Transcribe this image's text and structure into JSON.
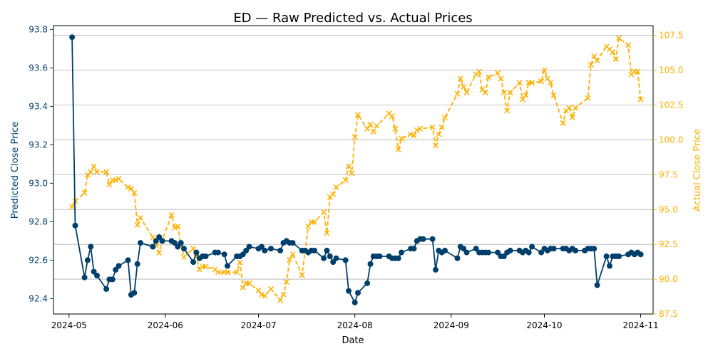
{
  "chart_data": {
    "type": "line",
    "title": "ED — Raw Predicted vs. Actual Prices",
    "xlabel": "Date",
    "ylabel_left": "Predicted Close Price",
    "ylabel_right": "Actual Close Price",
    "x_ticks": [
      "2024-05",
      "2024-06",
      "2024-07",
      "2024-08",
      "2024-09",
      "2024-10",
      "2024-11"
    ],
    "y_left_ticks": [
      "92.4",
      "92.6",
      "92.8",
      "93.0",
      "93.2",
      "93.4",
      "93.6",
      "93.8"
    ],
    "y_right_ticks": [
      "87.5",
      "90.0",
      "92.5",
      "95.0",
      "97.5",
      "100.0",
      "102.5",
      "105.0",
      "107.5"
    ],
    "ylim_left": [
      92.32,
      93.82
    ],
    "ylim_right": [
      87.5,
      108.2
    ],
    "xlim": [
      "2024-04-26",
      "2024-11-05"
    ],
    "grid": "horizontal lines on right axis",
    "colors": {
      "predicted": "#003f6b",
      "actual": "#ffb000"
    },
    "series": [
      {
        "axis": "left",
        "style": "solid line with circle markers",
        "points": [
          [
            "2024-05-02",
            93.76
          ],
          [
            "2024-05-03",
            92.78
          ],
          [
            "2024-05-06",
            92.51
          ],
          [
            "2024-05-07",
            92.6
          ],
          [
            "2024-05-08",
            92.67
          ],
          [
            "2024-05-09",
            92.54
          ],
          [
            "2024-05-10",
            92.52
          ],
          [
            "2024-05-13",
            92.45
          ],
          [
            "2024-05-14",
            92.5
          ],
          [
            "2024-05-15",
            92.5
          ],
          [
            "2024-05-16",
            92.55
          ],
          [
            "2024-05-17",
            92.57
          ],
          [
            "2024-05-20",
            92.6
          ],
          [
            "2024-05-21",
            92.42
          ],
          [
            "2024-05-22",
            92.43
          ],
          [
            "2024-05-23",
            92.58
          ],
          [
            "2024-05-24",
            92.69
          ],
          [
            "2024-05-28",
            92.67
          ],
          [
            "2024-05-29",
            92.7
          ],
          [
            "2024-05-30",
            92.72
          ],
          [
            "2024-05-31",
            92.7
          ],
          [
            "2024-06-03",
            92.7
          ],
          [
            "2024-06-04",
            92.69
          ],
          [
            "2024-06-05",
            92.67
          ],
          [
            "2024-06-06",
            92.69
          ],
          [
            "2024-06-07",
            92.66
          ],
          [
            "2024-06-10",
            92.59
          ],
          [
            "2024-06-11",
            92.64
          ],
          [
            "2024-06-12",
            92.61
          ],
          [
            "2024-06-13",
            92.62
          ],
          [
            "2024-06-14",
            92.62
          ],
          [
            "2024-06-17",
            92.64
          ],
          [
            "2024-06-18",
            92.64
          ],
          [
            "2024-06-20",
            92.63
          ],
          [
            "2024-06-21",
            92.57
          ],
          [
            "2024-06-24",
            92.62
          ],
          [
            "2024-06-25",
            92.62
          ],
          [
            "2024-06-26",
            92.63
          ],
          [
            "2024-06-27",
            92.65
          ],
          [
            "2024-06-28",
            92.67
          ],
          [
            "2024-07-01",
            92.66
          ],
          [
            "2024-07-02",
            92.67
          ],
          [
            "2024-07-03",
            92.65
          ],
          [
            "2024-07-05",
            92.66
          ],
          [
            "2024-07-08",
            92.65
          ],
          [
            "2024-07-09",
            92.69
          ],
          [
            "2024-07-10",
            92.7
          ],
          [
            "2024-07-11",
            92.69
          ],
          [
            "2024-07-12",
            92.69
          ],
          [
            "2024-07-15",
            92.65
          ],
          [
            "2024-07-16",
            92.65
          ],
          [
            "2024-07-17",
            92.64
          ],
          [
            "2024-07-18",
            92.65
          ],
          [
            "2024-07-19",
            92.65
          ],
          [
            "2024-07-22",
            92.61
          ],
          [
            "2024-07-23",
            92.65
          ],
          [
            "2024-07-24",
            92.62
          ],
          [
            "2024-07-25",
            92.59
          ],
          [
            "2024-07-26",
            92.61
          ],
          [
            "2024-07-29",
            92.6
          ],
          [
            "2024-07-30",
            92.44
          ],
          [
            "2024-08-01",
            92.38
          ],
          [
            "2024-08-02",
            92.43
          ],
          [
            "2024-08-05",
            92.48
          ],
          [
            "2024-08-06",
            92.58
          ],
          [
            "2024-08-07",
            92.62
          ],
          [
            "2024-08-08",
            92.62
          ],
          [
            "2024-08-09",
            92.62
          ],
          [
            "2024-08-12",
            92.62
          ],
          [
            "2024-08-13",
            92.61
          ],
          [
            "2024-08-14",
            92.61
          ],
          [
            "2024-08-15",
            92.61
          ],
          [
            "2024-08-16",
            92.64
          ],
          [
            "2024-08-19",
            92.66
          ],
          [
            "2024-08-20",
            92.66
          ],
          [
            "2024-08-21",
            92.7
          ],
          [
            "2024-08-22",
            92.71
          ],
          [
            "2024-08-23",
            92.71
          ],
          [
            "2024-08-26",
            92.71
          ],
          [
            "2024-08-27",
            92.55
          ],
          [
            "2024-08-28",
            92.65
          ],
          [
            "2024-08-29",
            92.64
          ],
          [
            "2024-08-30",
            92.65
          ],
          [
            "2024-09-03",
            92.61
          ],
          [
            "2024-09-04",
            92.67
          ],
          [
            "2024-09-05",
            92.66
          ],
          [
            "2024-09-06",
            92.64
          ],
          [
            "2024-09-09",
            92.66
          ],
          [
            "2024-09-10",
            92.64
          ],
          [
            "2024-09-11",
            92.64
          ],
          [
            "2024-09-12",
            92.64
          ],
          [
            "2024-09-13",
            92.64
          ],
          [
            "2024-09-16",
            92.64
          ],
          [
            "2024-09-17",
            92.62
          ],
          [
            "2024-09-18",
            92.62
          ],
          [
            "2024-09-19",
            92.64
          ],
          [
            "2024-09-20",
            92.65
          ],
          [
            "2024-09-23",
            92.65
          ],
          [
            "2024-09-24",
            92.64
          ],
          [
            "2024-09-25",
            92.65
          ],
          [
            "2024-09-26",
            92.64
          ],
          [
            "2024-09-27",
            92.67
          ],
          [
            "2024-09-30",
            92.64
          ],
          [
            "2024-10-01",
            92.66
          ],
          [
            "2024-10-02",
            92.65
          ],
          [
            "2024-10-03",
            92.66
          ],
          [
            "2024-10-04",
            92.66
          ],
          [
            "2024-10-07",
            92.66
          ],
          [
            "2024-10-08",
            92.66
          ],
          [
            "2024-10-09",
            92.65
          ],
          [
            "2024-10-10",
            92.66
          ],
          [
            "2024-10-11",
            92.65
          ],
          [
            "2024-10-14",
            92.65
          ],
          [
            "2024-10-15",
            92.66
          ],
          [
            "2024-10-16",
            92.66
          ],
          [
            "2024-10-17",
            92.66
          ],
          [
            "2024-10-18",
            92.47
          ],
          [
            "2024-10-21",
            92.62
          ],
          [
            "2024-10-22",
            92.57
          ],
          [
            "2024-10-23",
            92.62
          ],
          [
            "2024-10-24",
            92.62
          ],
          [
            "2024-10-25",
            92.62
          ],
          [
            "2024-10-28",
            92.63
          ],
          [
            "2024-10-29",
            92.64
          ],
          [
            "2024-10-30",
            92.63
          ],
          [
            "2024-10-31",
            92.64
          ],
          [
            "2024-11-01",
            92.63
          ]
        ]
      },
      {
        "axis": "right",
        "style": "dashed line with x markers",
        "points": [
          [
            "2024-05-02",
            95.2
          ],
          [
            "2024-05-03",
            95.6
          ],
          [
            "2024-05-06",
            96.2
          ],
          [
            "2024-05-07",
            97.5
          ],
          [
            "2024-05-08",
            97.7
          ],
          [
            "2024-05-09",
            98.1
          ],
          [
            "2024-05-10",
            97.7
          ],
          [
            "2024-05-13",
            97.7
          ],
          [
            "2024-05-14",
            96.8
          ],
          [
            "2024-05-15",
            97.1
          ],
          [
            "2024-05-16",
            97.1
          ],
          [
            "2024-05-17",
            97.2
          ],
          [
            "2024-05-20",
            96.6
          ],
          [
            "2024-05-21",
            96.5
          ],
          [
            "2024-05-22",
            96.2
          ],
          [
            "2024-05-23",
            93.9
          ],
          [
            "2024-05-24",
            94.4
          ],
          [
            "2024-05-28",
            93.0
          ],
          [
            "2024-05-29",
            92.6
          ],
          [
            "2024-05-30",
            91.9
          ],
          [
            "2024-05-31",
            92.8
          ],
          [
            "2024-06-03",
            94.6
          ],
          [
            "2024-06-04",
            93.7
          ],
          [
            "2024-06-05",
            93.8
          ],
          [
            "2024-06-06",
            92.5
          ],
          [
            "2024-06-07",
            91.6
          ],
          [
            "2024-06-10",
            92.2
          ],
          [
            "2024-06-11",
            91.6
          ],
          [
            "2024-06-12",
            90.7
          ],
          [
            "2024-06-13",
            90.9
          ],
          [
            "2024-06-14",
            90.9
          ],
          [
            "2024-06-17",
            90.7
          ],
          [
            "2024-06-18",
            90.5
          ],
          [
            "2024-06-20",
            90.5
          ],
          [
            "2024-06-21",
            90.5
          ],
          [
            "2024-06-24",
            90.5
          ],
          [
            "2024-06-25",
            91.2
          ],
          [
            "2024-06-26",
            89.4
          ],
          [
            "2024-06-27",
            89.7
          ],
          [
            "2024-06-28",
            89.7
          ],
          [
            "2024-07-01",
            89.2
          ],
          [
            "2024-07-02",
            88.9
          ],
          [
            "2024-07-03",
            88.8
          ],
          [
            "2024-07-05",
            89.3
          ],
          [
            "2024-07-08",
            88.5
          ],
          [
            "2024-07-09",
            88.9
          ],
          [
            "2024-07-10",
            89.8
          ],
          [
            "2024-07-11",
            91.4
          ],
          [
            "2024-07-12",
            91.8
          ],
          [
            "2024-07-15",
            90.3
          ],
          [
            "2024-07-16",
            92.0
          ],
          [
            "2024-07-17",
            93.8
          ],
          [
            "2024-07-18",
            94.1
          ],
          [
            "2024-07-19",
            94.1
          ],
          [
            "2024-07-22",
            94.8
          ],
          [
            "2024-07-23",
            93.3
          ],
          [
            "2024-07-24",
            95.9
          ],
          [
            "2024-07-25",
            96.1
          ],
          [
            "2024-07-26",
            96.6
          ],
          [
            "2024-07-29",
            97.1
          ],
          [
            "2024-07-30",
            98.1
          ],
          [
            "2024-07-31",
            97.6
          ],
          [
            "2024-08-01",
            100.2
          ],
          [
            "2024-08-02",
            101.8
          ],
          [
            "2024-08-05",
            100.8
          ],
          [
            "2024-08-06",
            101.1
          ],
          [
            "2024-08-07",
            100.6
          ],
          [
            "2024-08-08",
            101.0
          ],
          [
            "2024-08-12",
            101.9
          ],
          [
            "2024-08-13",
            101.7
          ],
          [
            "2024-08-14",
            100.8
          ],
          [
            "2024-08-15",
            99.3
          ],
          [
            "2024-08-16",
            100.1
          ],
          [
            "2024-08-19",
            100.4
          ],
          [
            "2024-08-20",
            100.3
          ],
          [
            "2024-08-21",
            100.7
          ],
          [
            "2024-08-22",
            100.8
          ],
          [
            "2024-08-26",
            100.9
          ],
          [
            "2024-08-27",
            99.6
          ],
          [
            "2024-08-28",
            100.4
          ],
          [
            "2024-08-29",
            100.9
          ],
          [
            "2024-08-30",
            101.6
          ],
          [
            "2024-09-03",
            103.3
          ],
          [
            "2024-09-04",
            104.4
          ],
          [
            "2024-09-05",
            103.8
          ],
          [
            "2024-09-06",
            103.4
          ],
          [
            "2024-09-09",
            104.7
          ],
          [
            "2024-09-10",
            104.9
          ],
          [
            "2024-09-11",
            103.6
          ],
          [
            "2024-09-12",
            103.4
          ],
          [
            "2024-09-13",
            104.5
          ],
          [
            "2024-09-16",
            104.8
          ],
          [
            "2024-09-17",
            104.4
          ],
          [
            "2024-09-18",
            103.4
          ],
          [
            "2024-09-19",
            102.1
          ],
          [
            "2024-09-20",
            103.4
          ],
          [
            "2024-09-23",
            104.1
          ],
          [
            "2024-09-24",
            102.9
          ],
          [
            "2024-09-25",
            103.2
          ],
          [
            "2024-09-26",
            104.1
          ],
          [
            "2024-09-27",
            104.1
          ],
          [
            "2024-09-30",
            104.2
          ],
          [
            "2024-10-01",
            105.0
          ],
          [
            "2024-10-02",
            104.4
          ],
          [
            "2024-10-03",
            104.1
          ],
          [
            "2024-10-04",
            103.2
          ],
          [
            "2024-10-07",
            101.2
          ],
          [
            "2024-10-08",
            102.1
          ],
          [
            "2024-10-09",
            102.3
          ],
          [
            "2024-10-10",
            101.6
          ],
          [
            "2024-10-11",
            102.3
          ],
          [
            "2024-10-15",
            103.0
          ],
          [
            "2024-10-16",
            105.4
          ],
          [
            "2024-10-17",
            106.0
          ],
          [
            "2024-10-18",
            105.7
          ],
          [
            "2024-10-21",
            106.7
          ],
          [
            "2024-10-22",
            106.5
          ],
          [
            "2024-10-23",
            106.3
          ],
          [
            "2024-10-24",
            105.8
          ],
          [
            "2024-10-25",
            107.3
          ],
          [
            "2024-10-28",
            106.8
          ],
          [
            "2024-10-29",
            104.7
          ],
          [
            "2024-10-30",
            104.9
          ],
          [
            "2024-10-31",
            104.9
          ],
          [
            "2024-11-01",
            102.9
          ]
        ]
      }
    ]
  }
}
